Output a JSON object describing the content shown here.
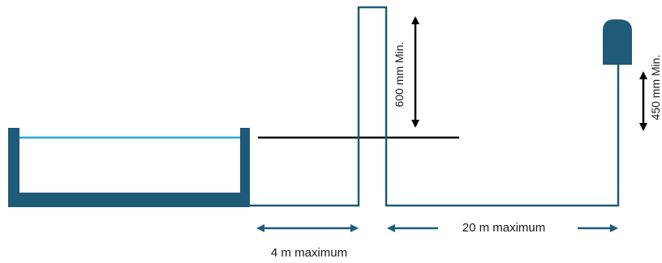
{
  "diagram": {
    "labels": {
      "vertical_clearance": "600 mm Min.",
      "device_height": "450 mm Min.",
      "horizontal_limit_1": "4 m maximum",
      "horizontal_limit_2": "20 m maximum"
    },
    "colors": {
      "structure": "#1f5a78",
      "water": "#29a8e0",
      "line": "#000000",
      "pipe": "#1f5a78",
      "arrow": "#1f5a78"
    }
  }
}
